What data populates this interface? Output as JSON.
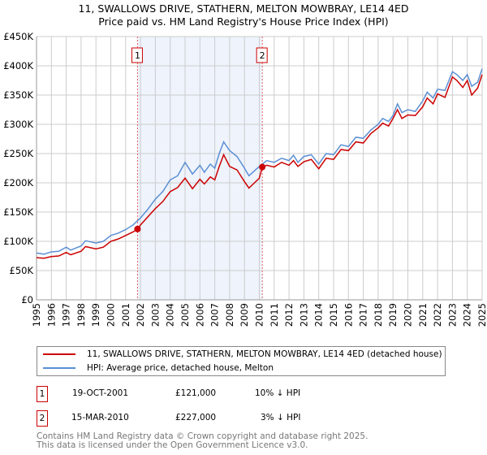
{
  "chart_data": {
    "type": "line",
    "title": "11, SWALLOWS DRIVE, STATHERN, MELTON MOWBRAY, LE14 4ED",
    "subtitle": "Price paid vs. HM Land Registry's House Price Index (HPI)",
    "xlim": [
      1995,
      2025
    ],
    "ylim": [
      0,
      450000
    ],
    "y_ticks": [
      {
        "v": 0,
        "label": "£0"
      },
      {
        "v": 50000,
        "label": "£50K"
      },
      {
        "v": 100000,
        "label": "£100K"
      },
      {
        "v": 150000,
        "label": "£150K"
      },
      {
        "v": 200000,
        "label": "£200K"
      },
      {
        "v": 250000,
        "label": "£250K"
      },
      {
        "v": 300000,
        "label": "£300K"
      },
      {
        "v": 350000,
        "label": "£350K"
      },
      {
        "v": 400000,
        "label": "£400K"
      },
      {
        "v": 450000,
        "label": "£450K"
      }
    ],
    "x_ticks": [
      "1995",
      "1996",
      "1997",
      "1998",
      "1999",
      "2000",
      "2001",
      "2002",
      "2003",
      "2004",
      "2005",
      "2006",
      "2007",
      "2008",
      "2009",
      "2010",
      "2011",
      "2012",
      "2013",
      "2014",
      "2015",
      "2016",
      "2017",
      "2018",
      "2019",
      "2020",
      "2021",
      "2022",
      "2023",
      "2024",
      "2025"
    ],
    "grid": true,
    "shaded_range": [
      2001.8,
      2010.2
    ],
    "series": [
      {
        "name": "11, SWALLOWS DRIVE, STATHERN, MELTON MOWBRAY, LE14 4ED (detached house)",
        "color": "#cc0000",
        "x": [
          1995,
          1995.5,
          1996,
          1996.5,
          1997,
          1997.3,
          1998,
          1998.3,
          1999,
          1999.5,
          2000,
          2000.5,
          2001,
          2001.5,
          2001.8,
          2002,
          2002.5,
          2003,
          2003.5,
          2004,
          2004.5,
          2005,
          2005.5,
          2006,
          2006.3,
          2006.7,
          2007,
          2007.3,
          2007.6,
          2008,
          2008.5,
          2009,
          2009.3,
          2010,
          2010.2,
          2010.5,
          2011,
          2011.5,
          2012,
          2012.3,
          2012.6,
          2013,
          2013.5,
          2014,
          2014.5,
          2015,
          2015.5,
          2016,
          2016.5,
          2017,
          2017.5,
          2018,
          2018.3,
          2018.7,
          2019,
          2019.3,
          2019.6,
          2020,
          2020.5,
          2021,
          2021.3,
          2021.7,
          2022,
          2022.5,
          2023,
          2023.3,
          2023.7,
          2024,
          2024.3,
          2024.7,
          2025
        ],
        "y": [
          72000,
          71000,
          74000,
          75000,
          81000,
          77000,
          83000,
          91000,
          87000,
          90000,
          100000,
          104000,
          110000,
          116000,
          121000,
          128000,
          142000,
          156000,
          168000,
          185000,
          192000,
          208000,
          190000,
          206000,
          198000,
          210000,
          205000,
          228000,
          248000,
          228000,
          222000,
          202000,
          191000,
          208000,
          227000,
          230000,
          227000,
          235000,
          230000,
          238000,
          228000,
          236000,
          240000,
          224000,
          242000,
          240000,
          257000,
          255000,
          270000,
          268000,
          284000,
          294000,
          302000,
          297000,
          310000,
          325000,
          310000,
          316000,
          315000,
          330000,
          345000,
          335000,
          352000,
          346000,
          381000,
          375000,
          363000,
          375000,
          350000,
          362000,
          385000
        ]
      },
      {
        "name": "HPI: Average price, detached house, Melton",
        "color": "#5b8fd4",
        "x": [
          1995,
          1995.5,
          1996,
          1996.5,
          1997,
          1997.3,
          1998,
          1998.3,
          1999,
          1999.5,
          2000,
          2000.5,
          2001,
          2001.5,
          2002,
          2002.5,
          2003,
          2003.5,
          2004,
          2004.5,
          2005,
          2005.5,
          2006,
          2006.3,
          2006.7,
          2007,
          2007.3,
          2007.6,
          2008,
          2008.5,
          2009,
          2009.3,
          2010,
          2010.5,
          2011,
          2011.5,
          2012,
          2012.3,
          2012.6,
          2013,
          2013.5,
          2014,
          2014.5,
          2015,
          2015.5,
          2016,
          2016.5,
          2017,
          2017.5,
          2018,
          2018.3,
          2018.7,
          2019,
          2019.3,
          2019.6,
          2020,
          2020.5,
          2021,
          2021.3,
          2021.7,
          2022,
          2022.5,
          2023,
          2023.3,
          2023.7,
          2024,
          2024.3,
          2024.7,
          2025
        ],
        "y": [
          80000,
          78000,
          82000,
          83000,
          90000,
          85000,
          92000,
          101000,
          97000,
          100000,
          110000,
          114000,
          120000,
          128000,
          140000,
          155000,
          172000,
          185000,
          205000,
          212000,
          235000,
          215000,
          230000,
          218000,
          232000,
          225000,
          250000,
          270000,
          255000,
          245000,
          225000,
          212000,
          228000,
          238000,
          235000,
          242000,
          238000,
          247000,
          235000,
          245000,
          248000,
          232000,
          250000,
          248000,
          265000,
          262000,
          278000,
          276000,
          290000,
          300000,
          310000,
          305000,
          315000,
          335000,
          320000,
          325000,
          322000,
          340000,
          355000,
          345000,
          360000,
          358000,
          390000,
          385000,
          375000,
          385000,
          365000,
          372000,
          395000
        ]
      }
    ],
    "sales": [
      {
        "id": "1",
        "x": 2001.8,
        "y": 121000
      },
      {
        "id": "2",
        "x": 2010.2,
        "y": 227000
      }
    ]
  },
  "legend": {
    "red": "11, SWALLOWS DRIVE, STATHERN, MELTON MOWBRAY, LE14 4ED (detached house)",
    "blue": "HPI: Average price, detached house, Melton"
  },
  "transactions": [
    {
      "id": "1",
      "date": "19-OCT-2001",
      "price": "£121,000",
      "delta": "10% ↓ HPI"
    },
    {
      "id": "2",
      "date": "15-MAR-2010",
      "price": "£227,000",
      "delta": "3% ↓ HPI"
    }
  ],
  "footer": [
    "Contains HM Land Registry data © Crown copyright and database right 2025.",
    "This data is licensed under the Open Government Licence v3.0."
  ]
}
